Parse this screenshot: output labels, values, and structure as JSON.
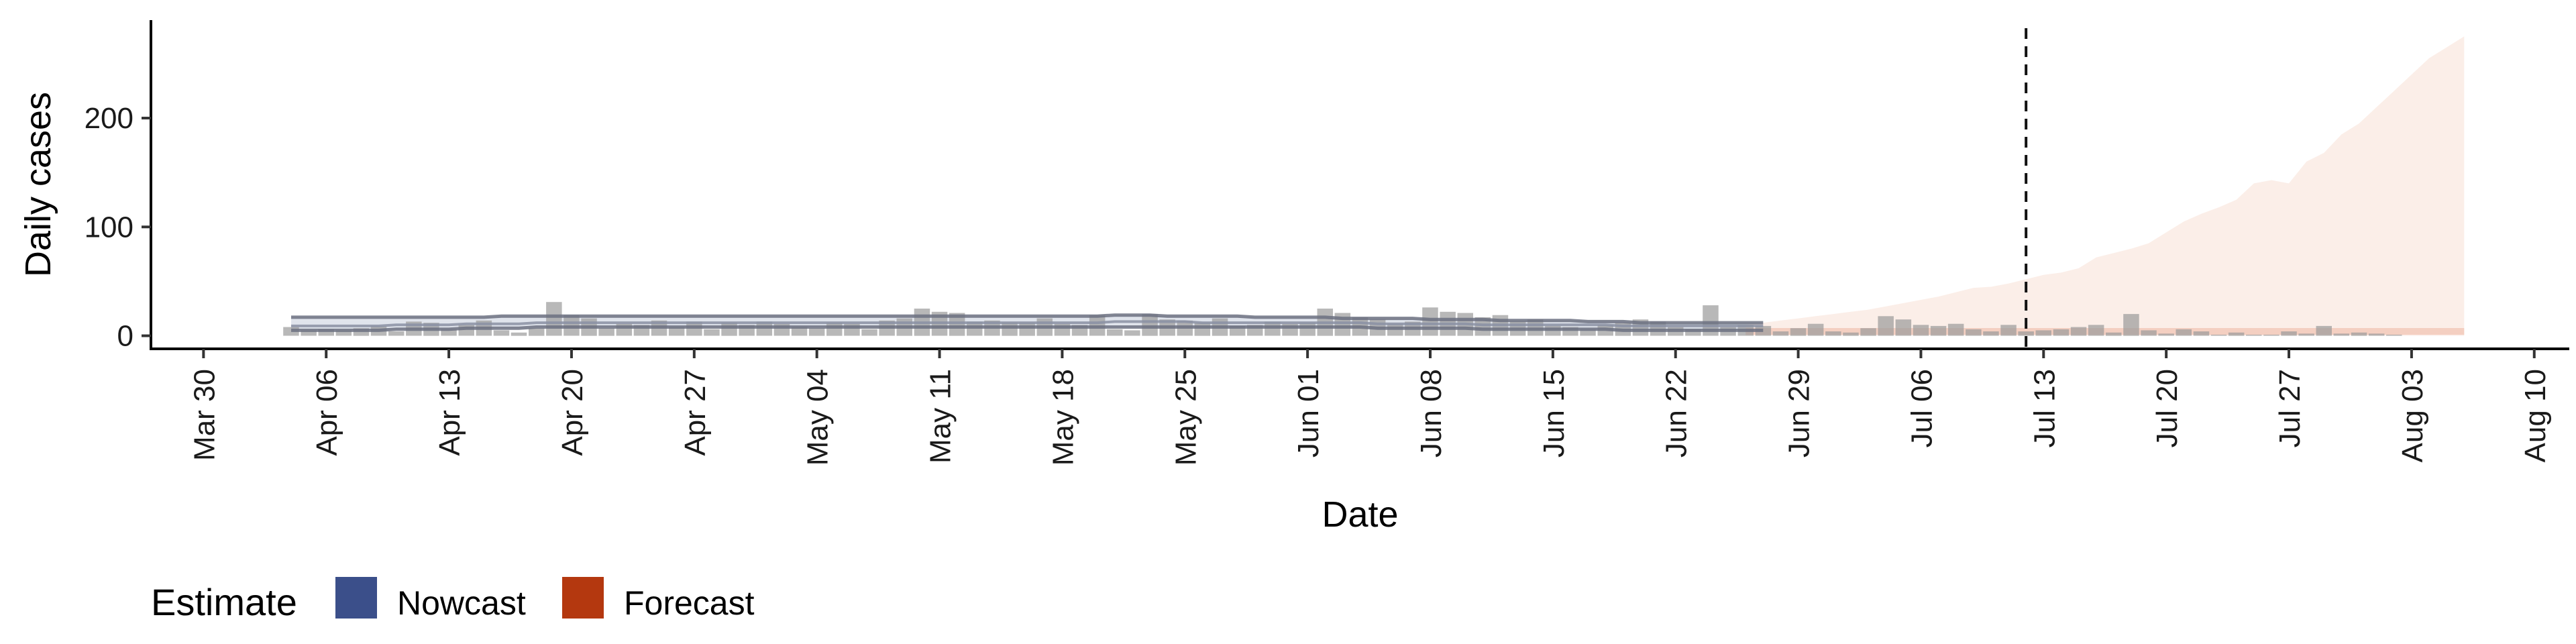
{
  "chart_data": {
    "type": "bar",
    "xlabel": "Date",
    "ylabel": "Daily cases",
    "ylim": [
      -12,
      290
    ],
    "xlim": [
      "2020-03-27",
      "2020-08-12"
    ],
    "x_ticks": [
      "2020-03-30",
      "2020-04-06",
      "2020-04-13",
      "2020-04-20",
      "2020-04-27",
      "2020-05-04",
      "2020-05-11",
      "2020-05-18",
      "2020-05-25",
      "2020-06-01",
      "2020-06-08",
      "2020-06-15",
      "2020-06-22",
      "2020-06-29",
      "2020-07-06",
      "2020-07-13",
      "2020-07-20",
      "2020-07-27",
      "2020-08-03",
      "2020-08-10"
    ],
    "x_tick_labels": [
      "Mar 30",
      "Apr 06",
      "Apr 13",
      "Apr 20",
      "Apr 27",
      "May 04",
      "May 11",
      "May 18",
      "May 25",
      "Jun 01",
      "Jun 08",
      "Jun 15",
      "Jun 22",
      "Jun 29",
      "Jul 06",
      "Jul 13",
      "Jul 20",
      "Jul 27",
      "Aug 03",
      "Aug 10"
    ],
    "y_ticks": [
      0,
      100,
      200
    ],
    "y_tick_labels": [
      "0",
      "100",
      "200"
    ],
    "vline_date": "2020-07-12",
    "grid": false,
    "legend_position": "bottom-left",
    "reported_cases": {
      "start_date": "2020-04-04",
      "values": [
        8,
        5,
        6,
        5,
        7,
        9,
        4,
        13,
        12,
        6,
        10,
        14,
        5,
        3,
        7,
        31,
        19,
        16,
        7,
        11,
        10,
        14,
        8,
        13,
        6,
        12,
        10,
        13,
        11,
        8,
        7,
        12,
        11,
        6,
        14,
        16,
        25,
        22,
        21,
        13,
        14,
        12,
        12,
        16,
        11,
        10,
        19,
        6,
        5,
        20,
        15,
        14,
        12,
        16,
        9,
        10,
        13,
        11,
        12,
        25,
        21,
        17,
        15,
        11,
        13,
        26,
        22,
        21,
        17,
        19,
        13,
        15,
        9,
        8,
        6,
        10,
        12,
        15,
        13,
        8,
        6,
        28,
        8,
        10,
        9,
        4,
        7,
        11,
        4,
        3,
        7,
        18,
        15,
        10,
        9,
        11,
        6,
        4,
        10,
        4,
        5,
        6,
        8,
        10,
        3,
        20,
        5,
        2,
        6,
        4,
        1,
        3,
        1,
        1,
        4,
        2,
        9,
        2,
        3,
        2,
        1
      ]
    },
    "series": [
      {
        "name": "Nowcast",
        "color": "#3b4f8a",
        "start_date": "2020-04-04",
        "end_date": "2020-06-26",
        "median": [
          9,
          9,
          9,
          9,
          9,
          9,
          10,
          10,
          10,
          10,
          11,
          11,
          11,
          11,
          12,
          12,
          12,
          12,
          12,
          12,
          12,
          12,
          12,
          12,
          12,
          12,
          12,
          12,
          12,
          12,
          12,
          12,
          12,
          12,
          12,
          12,
          12,
          12,
          12,
          12,
          12,
          12,
          12,
          12,
          12,
          12,
          12,
          13,
          13,
          13,
          13,
          13,
          12,
          12,
          12,
          12,
          12,
          12,
          12,
          12,
          12,
          12,
          11,
          11,
          11,
          11,
          11,
          11,
          10,
          10,
          10,
          10,
          10,
          10,
          10,
          10,
          9,
          9,
          9,
          9,
          9,
          9,
          9,
          9,
          9
        ],
        "lower": [
          5,
          5,
          5,
          5,
          5,
          5,
          6,
          6,
          6,
          6,
          7,
          7,
          7,
          7,
          8,
          8,
          8,
          8,
          8,
          8,
          8,
          8,
          8,
          8,
          8,
          8,
          8,
          8,
          8,
          8,
          8,
          8,
          8,
          8,
          8,
          8,
          8,
          8,
          8,
          8,
          8,
          8,
          8,
          8,
          8,
          8,
          8,
          8,
          8,
          8,
          8,
          8,
          8,
          8,
          8,
          8,
          8,
          8,
          8,
          8,
          8,
          8,
          7,
          7,
          7,
          7,
          7,
          7,
          6,
          6,
          6,
          6,
          6,
          6,
          6,
          6,
          5,
          5,
          5,
          5,
          5,
          5,
          5,
          5,
          5
        ],
        "upper": [
          17,
          17,
          17,
          17,
          17,
          17,
          17,
          17,
          17,
          17,
          17,
          17,
          18,
          18,
          18,
          18,
          18,
          18,
          18,
          18,
          18,
          18,
          18,
          18,
          18,
          18,
          18,
          18,
          18,
          18,
          18,
          18,
          18,
          18,
          18,
          18,
          18,
          18,
          18,
          18,
          18,
          18,
          18,
          18,
          18,
          18,
          18,
          19,
          19,
          19,
          18,
          18,
          18,
          18,
          18,
          17,
          17,
          17,
          17,
          17,
          16,
          16,
          16,
          16,
          16,
          15,
          15,
          15,
          15,
          14,
          14,
          14,
          14,
          14,
          13,
          13,
          13,
          12,
          12,
          12,
          12,
          12,
          12,
          12,
          12
        ]
      },
      {
        "name": "Forecast",
        "color": "#b4380f",
        "start_date": "2020-06-26",
        "end_date": "2020-08-06",
        "lower": [
          0,
          0,
          0,
          0,
          0,
          0,
          0,
          0,
          0,
          0,
          0,
          0,
          0,
          0,
          0,
          0,
          0,
          0,
          0,
          0,
          0,
          0,
          0,
          0,
          0,
          0,
          0,
          0,
          0,
          0,
          0,
          0,
          0,
          0,
          0,
          0,
          0,
          0,
          0,
          0,
          0,
          0
        ],
        "median": [
          4,
          4,
          4,
          4,
          4,
          4,
          4,
          4,
          4,
          4,
          4,
          4,
          4,
          4,
          4,
          4,
          4,
          4,
          4,
          4,
          4,
          4,
          4,
          4,
          4,
          4,
          4,
          4,
          4,
          4,
          4,
          4,
          4,
          4,
          4,
          4,
          4,
          4,
          4,
          4,
          4,
          4
        ],
        "upper": [
          10,
          12,
          14,
          16,
          18,
          20,
          22,
          24,
          27,
          30,
          33,
          36,
          40,
          44,
          45,
          48,
          52,
          56,
          58,
          62,
          72,
          76,
          80,
          85,
          95,
          105,
          112,
          118,
          125,
          140,
          143,
          140,
          160,
          168,
          185,
          195,
          210,
          225,
          240,
          255,
          265,
          275
        ]
      }
    ]
  },
  "legend": {
    "title": "Estimate",
    "items": [
      {
        "label": "Nowcast",
        "color": "#3b4f8a"
      },
      {
        "label": "Forecast",
        "color": "#b4380f"
      }
    ]
  }
}
